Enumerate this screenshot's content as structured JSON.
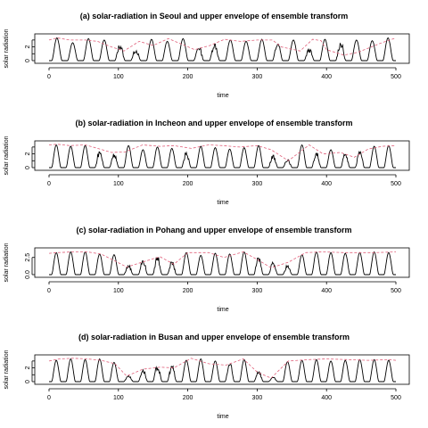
{
  "chart_data": [
    {
      "type": "line",
      "title": "(a) solar-radiation in Seoul and upper envelope of ensemble transform",
      "xlabel": "time",
      "ylabel": "solar radiation",
      "xlim": [
        0,
        500
      ],
      "ylim": [
        0,
        3.5
      ],
      "xticks": [
        0,
        100,
        200,
        300,
        400,
        500
      ],
      "yticks": [
        0,
        1,
        2,
        3
      ],
      "ytick_labels": [
        "0",
        "",
        "2",
        ""
      ],
      "peaks": [
        3.3,
        2.6,
        3.2,
        3.0,
        2.2,
        1.5,
        3.1,
        2.8,
        3.2,
        1.9,
        2.4,
        3.0,
        2.8,
        3.1,
        2.4,
        3.0,
        1.6,
        3.1,
        2.5,
        3.0,
        2.9,
        3.3
      ],
      "envelope": {
        "x": [
          0,
          12,
          30,
          52,
          70,
          90,
          108,
          130,
          150,
          172,
          210,
          232,
          253,
          276,
          300,
          322,
          335,
          362,
          380,
          392,
          400,
          425,
          445,
          480,
          500
        ],
        "y": [
          3.0,
          3.3,
          3.0,
          3.0,
          2.8,
          2.0,
          1.4,
          2.8,
          2.2,
          3.2,
          1.6,
          2.2,
          3.1,
          2.8,
          3.0,
          3.0,
          2.0,
          1.4,
          3.1,
          2.9,
          1.6,
          0.8,
          1.2,
          2.6,
          3.3
        ]
      },
      "envelope_color": "#e0607a"
    },
    {
      "type": "line",
      "title": "(b) solar-radiation in Incheon and upper envelope of ensemble transform",
      "xlabel": "time",
      "ylabel": "solar radiation",
      "xlim": [
        0,
        500
      ],
      "ylim": [
        0,
        3.5
      ],
      "xticks": [
        0,
        100,
        200,
        300,
        400,
        500
      ],
      "yticks": [
        0,
        1,
        2,
        3
      ],
      "ytick_labels": [
        "0",
        "",
        "2",
        ""
      ],
      "peaks": [
        3.3,
        3.1,
        3.2,
        2.3,
        2.0,
        3.2,
        2.6,
        3.0,
        2.8,
        2.2,
        3.1,
        2.9,
        2.7,
        2.9,
        3.2,
        1.8,
        1.2,
        3.3,
        2.1,
        2.6,
        1.9,
        2.3,
        3.1,
        3.2
      ],
      "envelope": {
        "x": [
          0,
          12,
          30,
          52,
          70,
          90,
          110,
          135,
          160,
          180,
          205,
          230,
          250,
          275,
          300,
          320,
          345,
          375,
          395,
          420,
          440,
          460,
          480,
          500
        ],
        "y": [
          3.3,
          3.4,
          3.2,
          3.3,
          2.8,
          2.2,
          2.3,
          3.3,
          3.1,
          3.2,
          2.8,
          3.3,
          3.2,
          3.0,
          3.2,
          2.6,
          1.0,
          3.3,
          2.0,
          2.2,
          1.5,
          2.7,
          3.1,
          3.2
        ]
      },
      "envelope_color": "#e0607a"
    },
    {
      "type": "line",
      "title": "(c) solar-radiation in Pohang and upper envelope of ensemble transform",
      "xlabel": "time",
      "ylabel": "solar radiation",
      "xlim": [
        0,
        500
      ],
      "ylim": [
        0,
        3.5
      ],
      "xticks": [
        0,
        100,
        200,
        300,
        400,
        500
      ],
      "yticks": [
        0,
        2.5
      ],
      "ytick_labels": [
        "0.0",
        "2.5"
      ],
      "peaks": [
        3.2,
        3.3,
        3.3,
        3.0,
        2.9,
        1.3,
        2.0,
        2.5,
        1.8,
        3.2,
        2.8,
        3.1,
        3.0,
        3.3,
        2.4,
        1.8,
        1.3,
        2.9,
        3.3,
        3.2,
        3.1,
        3.2,
        3.3,
        3.2
      ],
      "envelope": {
        "x": [
          0,
          12,
          35,
          55,
          75,
          95,
          112,
          140,
          160,
          180,
          200,
          230,
          252,
          280,
          300,
          320,
          345,
          370,
          395,
          425,
          445,
          470,
          500
        ],
        "y": [
          3.1,
          3.2,
          3.3,
          3.3,
          3.0,
          2.0,
          1.1,
          2.0,
          2.6,
          1.5,
          3.2,
          3.2,
          2.5,
          3.3,
          2.2,
          1.0,
          1.8,
          3.2,
          3.3,
          3.2,
          3.2,
          3.2,
          3.3
        ]
      },
      "envelope_color": "#e0607a"
    },
    {
      "type": "line",
      "title": "(d) solar-radiation in Busan and upper envelope of ensemble transform",
      "xlabel": "time",
      "ylabel": "solar radiation",
      "xlim": [
        0,
        500
      ],
      "ylim": [
        0,
        3.5
      ],
      "xticks": [
        0,
        100,
        200,
        300,
        400,
        500
      ],
      "yticks": [
        0,
        1,
        2,
        3
      ],
      "ytick_labels": [
        "0",
        "",
        "2",
        ""
      ],
      "peaks": [
        3.1,
        3.3,
        3.2,
        3.3,
        2.8,
        0.9,
        1.7,
        2.1,
        2.2,
        3.1,
        3.3,
        3.0,
        2.5,
        3.2,
        1.5,
        0.6,
        2.9,
        3.1,
        3.2,
        3.0,
        3.1,
        3.2,
        3.2,
        3.1
      ],
      "envelope": {
        "x": [
          0,
          15,
          35,
          55,
          75,
          95,
          112,
          135,
          160,
          180,
          205,
          230,
          255,
          280,
          300,
          320,
          345,
          375,
          400,
          430,
          460,
          490,
          500
        ],
        "y": [
          3.0,
          3.3,
          3.4,
          3.3,
          3.1,
          2.6,
          0.8,
          1.8,
          2.1,
          2.0,
          3.4,
          2.6,
          2.4,
          3.3,
          1.4,
          0.5,
          3.0,
          3.2,
          3.3,
          3.2,
          3.1,
          3.2,
          3.1
        ]
      },
      "envelope_color": "#e0607a"
    }
  ]
}
